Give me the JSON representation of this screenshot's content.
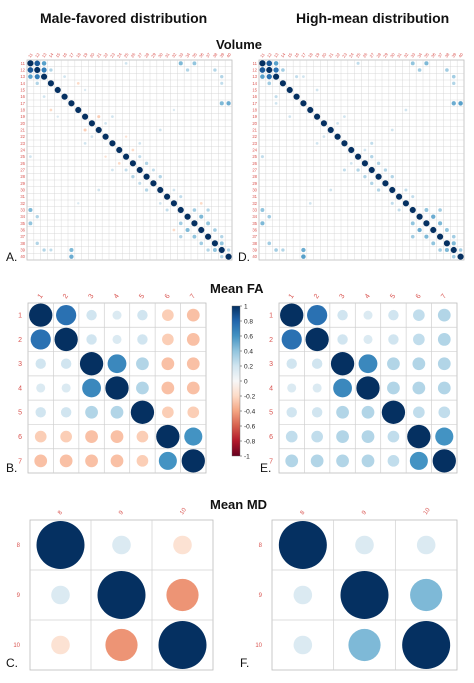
{
  "headers": {
    "left": "Male-favored distribution",
    "right": "High-mean distribution"
  },
  "sections": {
    "volume": "Volume",
    "fa": "Mean FA",
    "md": "Mean MD"
  },
  "panel_labels": [
    "A.",
    "D.",
    "B.",
    "E.",
    "C.",
    "F."
  ],
  "colors": {
    "positive_strong": "#053061",
    "positive_mid": "#4393c3",
    "positive_light": "#d1e5f0",
    "neutral": "#f7f7f7",
    "negative_light": "#fddbc7",
    "negative_mid": "#d6604d",
    "negative_strong": "#67001f",
    "tick_label": "#d9534f",
    "grid": "#d0d0d0"
  },
  "colorbar": {
    "ticks": [
      "1",
      "0.8",
      "0.6",
      "0.4",
      "0.2",
      "0",
      "-0.2",
      "-0.4",
      "-0.6",
      "-0.8",
      "-1"
    ]
  },
  "chart_data": [
    {
      "type": "heatmap",
      "panel": "A.",
      "section": "Volume",
      "column": "Male-favored distribution",
      "labels": [
        "11",
        "12",
        "13",
        "14",
        "15",
        "16",
        "17",
        "18",
        "19",
        "20",
        "21",
        "22",
        "23",
        "24",
        "25",
        "26",
        "27",
        "28",
        "29",
        "30",
        "31",
        "32",
        "33",
        "34",
        "35",
        "36",
        "37",
        "38",
        "39",
        "40"
      ],
      "offdiag": [
        [
          0,
          1,
          0.85
        ],
        [
          1,
          2,
          0.7
        ],
        [
          0,
          2,
          0.55
        ],
        [
          1,
          3,
          0.3
        ],
        [
          0,
          24,
          0.4
        ],
        [
          1,
          23,
          0.3
        ],
        [
          0,
          22,
          0.45
        ],
        [
          6,
          29,
          0.5
        ],
        [
          6,
          28,
          0.45
        ],
        [
          13,
          15,
          -0.2
        ],
        [
          10,
          8,
          -0.25
        ],
        [
          3,
          7,
          -0.2
        ],
        [
          22,
          24,
          0.35
        ],
        [
          23,
          25,
          0.45
        ],
        [
          24,
          26,
          0.4
        ],
        [
          22,
          26,
          0.3
        ],
        [
          25,
          27,
          0.35
        ],
        [
          26,
          28,
          0.3
        ],
        [
          27,
          28,
          0.4
        ],
        [
          28,
          29,
          0.3
        ],
        [
          16,
          18,
          0.25
        ],
        [
          15,
          17,
          0.3
        ],
        [
          17,
          19,
          0.3
        ],
        [
          14,
          16,
          0.25
        ],
        [
          19,
          21,
          0.2
        ],
        [
          20,
          22,
          0.25
        ],
        [
          2,
          5,
          0.2
        ],
        [
          4,
          8,
          0.15
        ],
        [
          11,
          14,
          -0.15
        ],
        [
          8,
          12,
          0.2
        ],
        [
          9,
          11,
          0.2
        ],
        [
          2,
          28,
          0.3
        ],
        [
          3,
          28,
          0.25
        ],
        [
          16,
          12,
          0.2
        ],
        [
          1,
          27,
          0.3
        ],
        [
          0,
          14,
          0.2
        ],
        [
          7,
          21,
          0.15
        ],
        [
          21,
          25,
          -0.2
        ],
        [
          10,
          19,
          0.2
        ]
      ]
    },
    {
      "type": "heatmap",
      "panel": "D.",
      "section": "Volume",
      "column": "High-mean distribution",
      "labels": [
        "11",
        "12",
        "13",
        "14",
        "15",
        "16",
        "17",
        "18",
        "19",
        "20",
        "21",
        "22",
        "23",
        "24",
        "25",
        "26",
        "27",
        "28",
        "29",
        "30",
        "31",
        "32",
        "33",
        "34",
        "35",
        "36",
        "37",
        "38",
        "39",
        "40"
      ],
      "offdiag": [
        [
          0,
          1,
          0.85
        ],
        [
          1,
          2,
          0.75
        ],
        [
          0,
          2,
          0.55
        ],
        [
          1,
          3,
          0.35
        ],
        [
          0,
          24,
          0.45
        ],
        [
          1,
          23,
          0.35
        ],
        [
          0,
          22,
          0.4
        ],
        [
          6,
          29,
          0.55
        ],
        [
          6,
          28,
          0.5
        ],
        [
          13,
          15,
          0.2
        ],
        [
          22,
          24,
          0.4
        ],
        [
          23,
          25,
          0.5
        ],
        [
          24,
          26,
          0.45
        ],
        [
          22,
          26,
          0.35
        ],
        [
          25,
          27,
          0.4
        ],
        [
          26,
          28,
          0.35
        ],
        [
          27,
          28,
          0.45
        ],
        [
          28,
          29,
          0.35
        ],
        [
          16,
          18,
          0.3
        ],
        [
          15,
          17,
          0.3
        ],
        [
          17,
          19,
          0.3
        ],
        [
          14,
          16,
          0.3
        ],
        [
          19,
          21,
          0.25
        ],
        [
          20,
          22,
          0.25
        ],
        [
          2,
          5,
          0.25
        ],
        [
          4,
          8,
          0.2
        ],
        [
          8,
          12,
          0.2
        ],
        [
          9,
          11,
          0.2
        ],
        [
          2,
          28,
          0.35
        ],
        [
          3,
          28,
          0.3
        ],
        [
          16,
          12,
          0.25
        ],
        [
          1,
          27,
          0.35
        ],
        [
          0,
          14,
          0.25
        ],
        [
          7,
          21,
          0.2
        ],
        [
          10,
          19,
          0.2
        ],
        [
          2,
          6,
          0.2
        ]
      ]
    },
    {
      "type": "heatmap",
      "panel": "B.",
      "section": "Mean FA",
      "column": "Male-favored distribution",
      "labels": [
        "1",
        "2",
        "3",
        "4",
        "5",
        "6",
        "7"
      ],
      "matrix": [
        [
          1,
          0.75,
          0.2,
          0.15,
          0.2,
          -0.25,
          -0.3
        ],
        [
          0.75,
          1,
          0.2,
          0.15,
          0.2,
          -0.25,
          -0.3
        ],
        [
          0.2,
          0.2,
          1,
          0.65,
          0.3,
          -0.3,
          -0.3
        ],
        [
          0.15,
          0.15,
          0.65,
          1,
          0.3,
          -0.3,
          -0.3
        ],
        [
          0.2,
          0.2,
          0.3,
          0.3,
          1,
          -0.25,
          -0.25
        ],
        [
          -0.25,
          -0.25,
          -0.3,
          -0.3,
          -0.25,
          1,
          0.6
        ],
        [
          -0.3,
          -0.3,
          -0.3,
          -0.3,
          -0.25,
          0.6,
          1
        ]
      ]
    },
    {
      "type": "heatmap",
      "panel": "E.",
      "section": "Mean FA",
      "column": "High-mean distribution",
      "labels": [
        "1",
        "2",
        "3",
        "4",
        "5",
        "6",
        "7"
      ],
      "matrix": [
        [
          1,
          0.75,
          0.2,
          0.15,
          0.2,
          0.25,
          0.3
        ],
        [
          0.75,
          1,
          0.2,
          0.15,
          0.2,
          0.25,
          0.3
        ],
        [
          0.2,
          0.2,
          1,
          0.65,
          0.3,
          0.3,
          0.3
        ],
        [
          0.15,
          0.15,
          0.65,
          1,
          0.3,
          0.3,
          0.3
        ],
        [
          0.2,
          0.2,
          0.3,
          0.3,
          1,
          0.25,
          0.25
        ],
        [
          0.25,
          0.25,
          0.3,
          0.3,
          0.25,
          1,
          0.6
        ],
        [
          0.3,
          0.3,
          0.3,
          0.3,
          0.25,
          0.6,
          1
        ]
      ]
    },
    {
      "type": "heatmap",
      "panel": "C.",
      "section": "Mean MD",
      "column": "Male-favored distribution",
      "labels": [
        "8",
        "9",
        "10"
      ],
      "matrix": [
        [
          1,
          0.15,
          -0.15
        ],
        [
          0.15,
          1,
          -0.45
        ],
        [
          -0.15,
          -0.45,
          1
        ]
      ]
    },
    {
      "type": "heatmap",
      "panel": "F.",
      "section": "Mean MD",
      "column": "High-mean distribution",
      "labels": [
        "8",
        "9",
        "10"
      ],
      "matrix": [
        [
          1,
          0.15,
          0.15
        ],
        [
          0.15,
          1,
          0.45
        ],
        [
          0.15,
          0.45,
          1
        ]
      ]
    }
  ]
}
